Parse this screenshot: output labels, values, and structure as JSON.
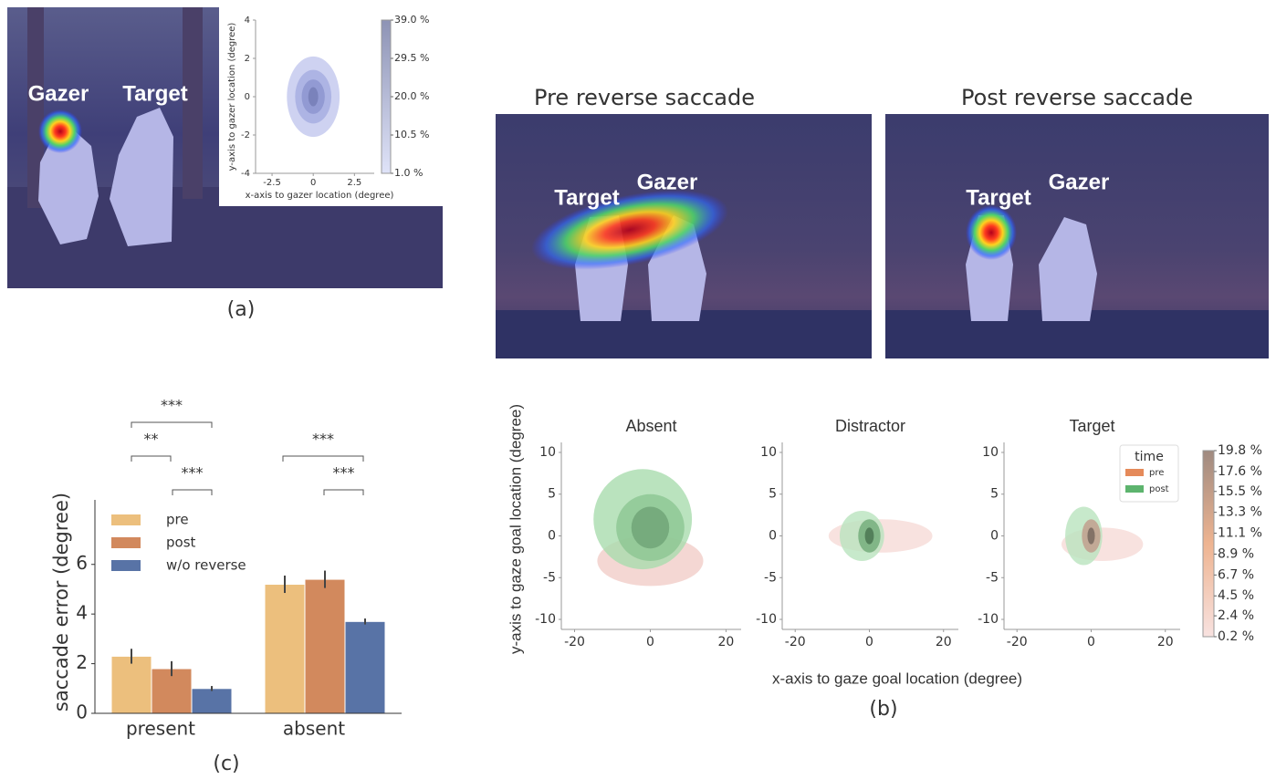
{
  "panel_labels": {
    "a": "(a)",
    "b": "(b)",
    "c": "(c)"
  },
  "photo_a": {
    "gazer": "Gazer",
    "target": "Target"
  },
  "photo_pre": {
    "title": "Pre reverse saccade",
    "target": "Target",
    "gazer": "Gazer"
  },
  "photo_post": {
    "title": "Post reverse saccade",
    "target": "Target",
    "gazer": "Gazer"
  },
  "panel_b": {
    "xlabel": "x-axis to gaze goal location (degree)",
    "ylabel": "y-axis to gaze goal location (degree)"
  },
  "chart_data": [
    {
      "type": "density",
      "xlabel": "x-axis to gazer location (degree)",
      "ylabel": "y-axis to gazer location (degree)",
      "xlim": [
        -3.5,
        3.7
      ],
      "xticks": [
        -2.5,
        0,
        2.5
      ],
      "ylim": [
        -4,
        4
      ],
      "yticks": [
        -4,
        -2,
        0,
        2,
        4
      ],
      "colorbar": {
        "lim": [
          1.0,
          39.0
        ],
        "ticks": [
          {
            "value": 39.0,
            "label": "39.0 %"
          },
          {
            "value": 29.5,
            "label": "29.5 %"
          },
          {
            "value": 20.0,
            "label": "20.0 %"
          },
          {
            "value": 10.5,
            "label": "10.5 %"
          },
          {
            "value": 1.0,
            "label": "1.0 %"
          }
        ]
      }
    },
    {
      "type": "density",
      "title": "Absent",
      "xlim": [
        -23.5,
        24
      ],
      "xticks": [
        -20,
        0,
        20
      ],
      "ylim": [
        -11.2,
        11.2
      ],
      "yticks": [
        -10,
        -5,
        0,
        5,
        10
      ]
    },
    {
      "type": "density",
      "title": "Distractor",
      "xlim": [
        -23.5,
        24
      ],
      "xticks": [
        -20,
        0,
        20
      ],
      "ylim": [
        -11.2,
        11.2
      ],
      "yticks": [
        -10,
        -5,
        0,
        5,
        10
      ]
    },
    {
      "type": "density",
      "title": "Target",
      "xlim": [
        -23.5,
        24
      ],
      "xticks": [
        -20,
        0,
        20
      ],
      "ylim": [
        -11.2,
        11.2
      ],
      "yticks": [
        -10,
        -5,
        0,
        5,
        10
      ],
      "legend_title": "time",
      "series": [
        {
          "name": "pre",
          "color": "#e58a5a"
        },
        {
          "name": "post",
          "color": "#5db46e"
        }
      ],
      "colorbar": {
        "lim": [
          0.2,
          19.8
        ],
        "ticks": [
          {
            "value": 19.8,
            "label": "19.8 %"
          },
          {
            "value": 17.6,
            "label": "17.6 %"
          },
          {
            "value": 15.5,
            "label": "15.5 %"
          },
          {
            "value": 13.3,
            "label": "13.3 %"
          },
          {
            "value": 11.1,
            "label": "11.1 %"
          },
          {
            "value": 8.9,
            "label": "8.9 %"
          },
          {
            "value": 6.7,
            "label": "6.7 %"
          },
          {
            "value": 4.5,
            "label": "4.5 %"
          },
          {
            "value": 2.4,
            "label": "2.4 %"
          },
          {
            "value": 0.2,
            "label": "0.2 %"
          }
        ]
      }
    },
    {
      "type": "bar",
      "ylabel": "saccade error (degree)",
      "categories": [
        "present",
        "absent"
      ],
      "ylim": [
        0,
        8.6
      ],
      "yticks": [
        0,
        2,
        4,
        6
      ],
      "series": [
        {
          "name": "pre",
          "color": "#ecbf7d",
          "values": [
            2.3,
            5.2
          ],
          "errors": [
            0.3,
            0.35
          ]
        },
        {
          "name": "post",
          "color": "#d2895d",
          "values": [
            1.8,
            5.4
          ],
          "errors": [
            0.3,
            0.35
          ]
        },
        {
          "name": "w/o reverse",
          "color": "#5873a6",
          "values": [
            1.0,
            3.7
          ],
          "errors": [
            0.1,
            0.12
          ]
        }
      ],
      "annotations": [
        {
          "label": "***"
        },
        {
          "label": "**"
        },
        {
          "label": "***"
        },
        {
          "label": "***"
        },
        {
          "label": "***"
        }
      ]
    }
  ]
}
